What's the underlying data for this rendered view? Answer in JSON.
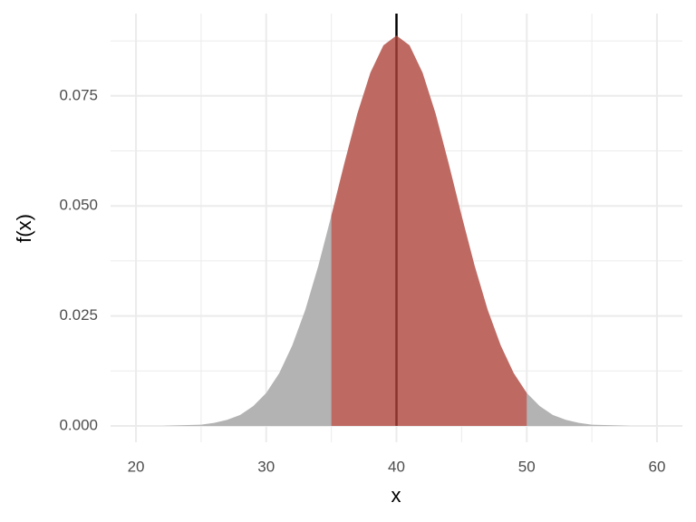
{
  "chart_data": {
    "type": "area",
    "x_label": "x",
    "y_label": "f(x)",
    "x": [
      20,
      21,
      22,
      23,
      24,
      25,
      26,
      27,
      28,
      29,
      30,
      31,
      32,
      33,
      34,
      35,
      36,
      37,
      38,
      39,
      40,
      41,
      42,
      43,
      44,
      45,
      46,
      47,
      48,
      49,
      50,
      51,
      52,
      53,
      54,
      55,
      56,
      57,
      58,
      59,
      60
    ],
    "series": [
      {
        "color": "#b3b3b3",
        "values": [
          0.0,
          0.0,
          0.0,
          0.0001,
          0.0002,
          0.0003,
          0.0007,
          0.0014,
          0.0025,
          0.0045,
          0.0075,
          0.012,
          0.0183,
          0.0264,
          0.0364,
          0.0478,
          0.0597,
          0.071,
          0.0803,
          0.0865,
          0.0887,
          0.0865,
          0.0803,
          0.071,
          0.0597,
          0.0478,
          0.0364,
          0.0264,
          0.0183,
          0.012,
          0.0075,
          0.0045,
          0.0025,
          0.0014,
          0.0007,
          0.0003,
          0.0002,
          0.0001,
          0.0,
          0.0,
          0.0
        ]
      }
    ],
    "highlight_range": [
      35,
      50
    ],
    "highlight_color": "#c34b41",
    "highlight_opacity": 0.7,
    "vline": 40,
    "vline_color": "#000000",
    "xlim": [
      18.05,
      61.95
    ],
    "ylim": [
      -0.0037,
      0.0937
    ],
    "xticks": [
      20,
      30,
      40,
      50,
      60
    ],
    "yticks": [
      {
        "value": 0,
        "label": "0.000"
      },
      0.025,
      {
        "value": 0.05,
        "label": "0.050"
      },
      0.075
    ],
    "x_minor_ticks": [
      25,
      35,
      45,
      55
    ],
    "y_minor_ticks": [
      0.0125,
      0.0375,
      0.0625,
      0.0875
    ],
    "grid": true
  }
}
